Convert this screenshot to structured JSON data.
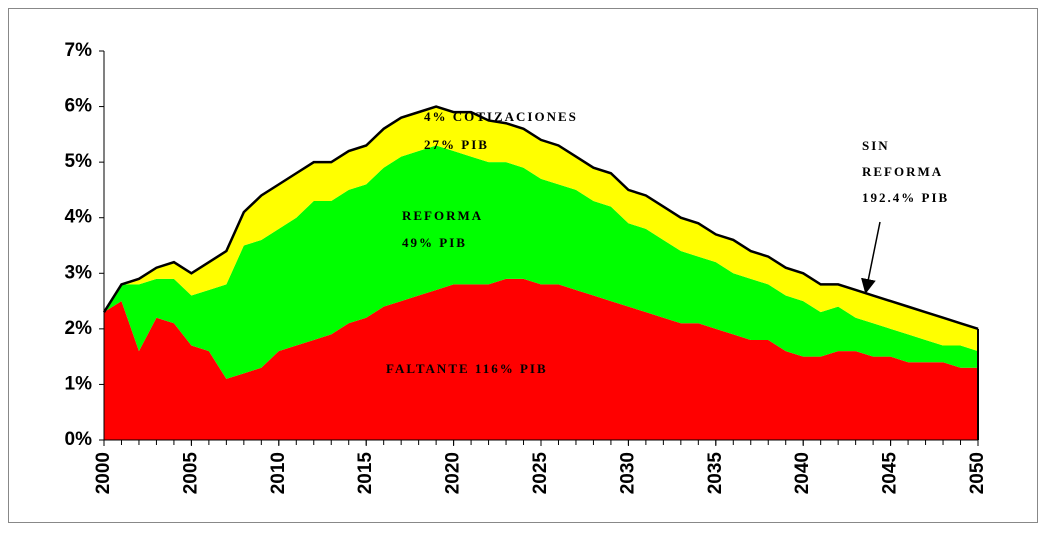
{
  "chart_data": {
    "type": "stacked_area",
    "x": [
      2000,
      2001,
      2002,
      2003,
      2004,
      2005,
      2006,
      2007,
      2008,
      2009,
      2010,
      2011,
      2012,
      2013,
      2014,
      2015,
      2016,
      2017,
      2018,
      2019,
      2020,
      2021,
      2022,
      2023,
      2024,
      2025,
      2026,
      2027,
      2028,
      2029,
      2030,
      2031,
      2032,
      2033,
      2034,
      2035,
      2036,
      2037,
      2038,
      2039,
      2040,
      2041,
      2042,
      2043,
      2044,
      2045,
      2046,
      2047,
      2048,
      2049,
      2050
    ],
    "series": [
      {
        "name": "FALTANTE 116% PIB",
        "color": "#ff0000",
        "values": [
          2.3,
          2.5,
          1.6,
          2.2,
          2.1,
          1.7,
          1.6,
          1.1,
          1.2,
          1.3,
          1.6,
          1.7,
          1.8,
          1.9,
          2.1,
          2.2,
          2.4,
          2.5,
          2.6,
          2.7,
          2.8,
          2.8,
          2.8,
          2.9,
          2.9,
          2.8,
          2.8,
          2.7,
          2.6,
          2.5,
          2.4,
          2.3,
          2.2,
          2.1,
          2.1,
          2.0,
          1.9,
          1.8,
          1.8,
          1.6,
          1.5,
          1.5,
          1.6,
          1.6,
          1.5,
          1.5,
          1.4,
          1.4,
          1.4,
          1.3,
          1.3
        ]
      },
      {
        "name": "REFORMA 49% PIB",
        "color": "#00ff00",
        "values": [
          0,
          0.3,
          1.2,
          0.7,
          0.8,
          0.9,
          1.1,
          1.7,
          2.3,
          2.3,
          2.2,
          2.3,
          2.5,
          2.4,
          2.4,
          2.4,
          2.5,
          2.6,
          2.6,
          2.6,
          2.4,
          2.3,
          2.2,
          2.1,
          2.0,
          1.9,
          1.8,
          1.8,
          1.7,
          1.7,
          1.5,
          1.5,
          1.4,
          1.3,
          1.2,
          1.2,
          1.1,
          1.1,
          1.0,
          1.0,
          1.0,
          0.8,
          0.8,
          0.6,
          0.6,
          0.5,
          0.5,
          0.4,
          0.3,
          0.4,
          0.3
        ]
      },
      {
        "name": "4% COTIZACIONES 27% PIB",
        "color": "#ffff00",
        "values": [
          0,
          0,
          0.1,
          0.2,
          0.3,
          0.4,
          0.5,
          0.6,
          0.6,
          0.8,
          0.8,
          0.8,
          0.7,
          0.7,
          0.7,
          0.7,
          0.7,
          0.7,
          0.7,
          0.7,
          0.7,
          0.8,
          0.75,
          0.7,
          0.7,
          0.7,
          0.7,
          0.6,
          0.6,
          0.6,
          0.6,
          0.6,
          0.6,
          0.6,
          0.6,
          0.5,
          0.6,
          0.5,
          0.5,
          0.5,
          0.5,
          0.5,
          0.4,
          0.5,
          0.5,
          0.5,
          0.5,
          0.5,
          0.5,
          0.4,
          0.4
        ]
      }
    ],
    "annotations": [
      "4% COTIZACIONES",
      "27% PIB",
      "REFORMA",
      "49% PIB",
      "FALTANTE 116% PIB",
      "SIN",
      "REFORMA",
      "192.4%   PIB"
    ],
    "xlim": [
      2000,
      2050
    ],
    "xticks": [
      2000,
      2005,
      2010,
      2015,
      2020,
      2025,
      2030,
      2035,
      2040,
      2045,
      2050
    ],
    "ylim": [
      0,
      7
    ],
    "yticks": [
      {
        "value": 0,
        "label": "0%"
      },
      {
        "value": 1,
        "label": "1%"
      },
      {
        "value": 2,
        "label": "2%"
      },
      {
        "value": 3,
        "label": "3%"
      },
      {
        "value": 4,
        "label": "4%"
      },
      {
        "value": 5,
        "label": "5%"
      },
      {
        "value": 6,
        "label": "6%"
      },
      {
        "value": 7,
        "label": "7%"
      }
    ],
    "top_line_color": "#000000"
  }
}
